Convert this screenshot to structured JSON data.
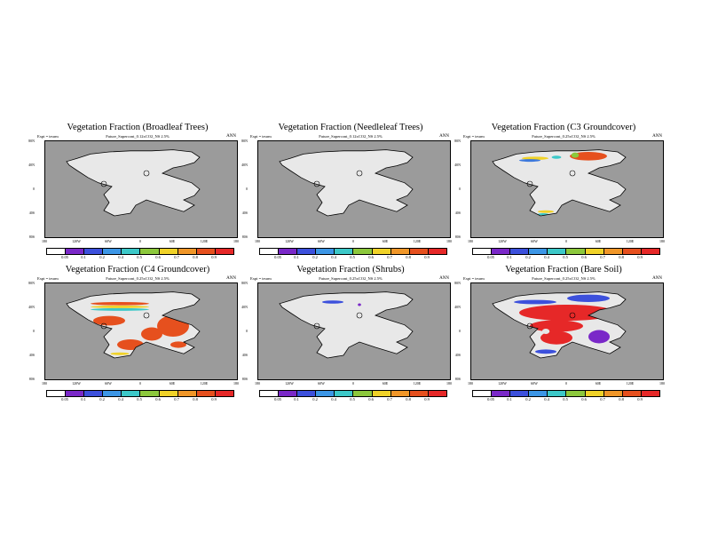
{
  "chart_data": [
    {
      "type": "map",
      "title": "Vegetation Fraction (Broadleaf Trees)",
      "expt_label": "Expt = teurm",
      "run_label": "Future_Supercont_0.12xCO2_NS 2.5%",
      "period": "ANN",
      "lat_ticks": [
        "80N",
        "40N",
        "0",
        "40S",
        "80S"
      ],
      "lon_ticks": [
        "180",
        "120W",
        "60W",
        "0",
        "60E",
        "120E",
        "180"
      ],
      "legend_labels": [
        "0.05",
        "0.1",
        "0.2",
        "0.4",
        "0.5",
        "0.6",
        "0.7",
        "0.8",
        "0.9"
      ],
      "patches": []
    },
    {
      "type": "map",
      "title": "Vegetation Fraction (Needleleaf Trees)",
      "expt_label": "Expt = teurm",
      "run_label": "Future_Supercont_0.12xCO2_NS 2.5%",
      "period": "ANN",
      "lat_ticks": [
        "80N",
        "40N",
        "0",
        "40S",
        "80S"
      ],
      "lon_ticks": [
        "180",
        "120W",
        "60W",
        "0",
        "60E",
        "120E",
        "180"
      ],
      "legend_labels": [
        "0.05",
        "0.1",
        "0.2",
        "0.4",
        "0.5",
        "0.6",
        "0.7",
        "0.8",
        "0.9"
      ],
      "patches": []
    },
    {
      "type": "map",
      "title": "Vegetation Fraction (C3 Groundcover)",
      "expt_label": "Expt = teurm",
      "run_label": "Future_Supercont_0.25xCO2_NS 2.5%",
      "period": "ANN",
      "lat_ticks": [
        "80N",
        "40N",
        "0",
        "40S",
        "80S"
      ],
      "lon_ticks": [
        "180",
        "120W",
        "60W",
        "0",
        "60E",
        "120E",
        "180"
      ],
      "legend_labels": [
        "0.05",
        "0.1",
        "0.2",
        "0.4",
        "0.5",
        "0.6",
        "0.7",
        "0.8",
        "0.9"
      ],
      "patches": [
        {
          "lon": 40,
          "lat": 62,
          "w": 70,
          "h": 16,
          "color": "#e6501e"
        },
        {
          "lon": 15,
          "lat": 64,
          "w": 14,
          "h": 10,
          "color": "#8cc83c"
        },
        {
          "lon": -60,
          "lat": 58,
          "w": 50,
          "h": 6,
          "color": "#f0d228"
        },
        {
          "lon": -70,
          "lat": 54,
          "w": 40,
          "h": 5,
          "color": "#3c78dc"
        },
        {
          "lon": -20,
          "lat": 60,
          "w": 18,
          "h": 6,
          "color": "#3cc8c8"
        },
        {
          "lon": -40,
          "lat": -42,
          "w": 30,
          "h": 5,
          "color": "#f0d228"
        },
        {
          "lon": -45,
          "lat": -47,
          "w": 20,
          "h": 4,
          "color": "#3cc8c8"
        }
      ]
    },
    {
      "type": "map",
      "title": "Vegetation Fraction (C4 Groundcover)",
      "expt_label": "Expt = teurm",
      "run_label": "Future_Supercont_0.25xCO2_NS 2.5%",
      "period": "ANN",
      "lat_ticks": [
        "80N",
        "40N",
        "0",
        "40S",
        "80S"
      ],
      "lon_ticks": [
        "180",
        "120W",
        "60W",
        "0",
        "60E",
        "120E",
        "180"
      ],
      "legend_labels": [
        "0.05",
        "0.1",
        "0.2",
        "0.4",
        "0.5",
        "0.6",
        "0.7",
        "0.8",
        "0.9"
      ],
      "patches": [
        {
          "lon": -40,
          "lat": 52,
          "w": 110,
          "h": 6,
          "color": "#e6501e"
        },
        {
          "lon": -40,
          "lat": 46,
          "w": 110,
          "h": 5,
          "color": "#f0d228"
        },
        {
          "lon": -40,
          "lat": 41,
          "w": 110,
          "h": 5,
          "color": "#3cc8c8"
        },
        {
          "lon": -60,
          "lat": 20,
          "w": 60,
          "h": 18,
          "color": "#e6501e"
        },
        {
          "lon": 60,
          "lat": 10,
          "w": 60,
          "h": 40,
          "color": "#e6501e"
        },
        {
          "lon": 20,
          "lat": -5,
          "w": 40,
          "h": 25,
          "color": "#e6501e"
        },
        {
          "lon": -20,
          "lat": -25,
          "w": 50,
          "h": 20,
          "color": "#e6501e"
        },
        {
          "lon": -40,
          "lat": -42,
          "w": 35,
          "h": 5,
          "color": "#f0d228"
        },
        {
          "lon": 70,
          "lat": -25,
          "w": 30,
          "h": 12,
          "color": "#e6501e"
        }
      ]
    },
    {
      "type": "map",
      "title": "Vegetation Fraction (Shrubs)",
      "expt_label": "Expt = teurm",
      "run_label": "Future_Supercont_0.25xCO2_NS 2.5%",
      "period": "ANN",
      "lat_ticks": [
        "80N",
        "40N",
        "0",
        "40S",
        "80S"
      ],
      "lon_ticks": [
        "180",
        "120W",
        "60W",
        "0",
        "60E",
        "120E",
        "180"
      ],
      "legend_labels": [
        "0.05",
        "0.1",
        "0.2",
        "0.4",
        "0.5",
        "0.6",
        "0.7",
        "0.8",
        "0.9"
      ],
      "patches": [
        {
          "lon": -40,
          "lat": 55,
          "w": 40,
          "h": 6,
          "color": "#3c50dc"
        },
        {
          "lon": 10,
          "lat": 50,
          "w": 6,
          "h": 5,
          "color": "#7a28c8"
        }
      ]
    },
    {
      "type": "map",
      "title": "Vegetation Fraction (Bare Soil)",
      "expt_label": "Expt = teurm",
      "run_label": "Future_Supercont_0.25xCO2_NS 2.5%",
      "period": "ANN",
      "lat_ticks": [
        "80N",
        "40N",
        "0",
        "40S",
        "80S"
      ],
      "lon_ticks": [
        "180",
        "120W",
        "60W",
        "0",
        "60E",
        "120E",
        "180"
      ],
      "legend_labels": [
        "0.05",
        "0.1",
        "0.2",
        "0.4",
        "0.5",
        "0.6",
        "0.7",
        "0.8",
        "0.9"
      ],
      "patches": [
        {
          "lon": 40,
          "lat": 62,
          "w": 80,
          "h": 14,
          "color": "#3c50dc"
        },
        {
          "lon": -60,
          "lat": 55,
          "w": 80,
          "h": 8,
          "color": "#3c50dc"
        },
        {
          "lon": 0,
          "lat": 35,
          "w": 180,
          "h": 30,
          "color": "#e62828"
        },
        {
          "lon": -20,
          "lat": 10,
          "w": 100,
          "h": 22,
          "color": "#e62828"
        },
        {
          "lon": -20,
          "lat": -12,
          "w": 60,
          "h": 25,
          "color": "#e62828"
        },
        {
          "lon": -40,
          "lat": -38,
          "w": 40,
          "h": 8,
          "color": "#3c50dc"
        },
        {
          "lon": 60,
          "lat": -10,
          "w": 40,
          "h": 25,
          "color": "#7a28c8"
        },
        {
          "lon": -40,
          "lat": 0,
          "w": 14,
          "h": 10,
          "color": "#e6e6e6"
        }
      ]
    }
  ],
  "colorbar": {
    "colors": [
      "#ffffff",
      "#7a28c8",
      "#3c50dc",
      "#3c96e6",
      "#3cc8c8",
      "#8cc83c",
      "#f0d228",
      "#f09628",
      "#e6501e",
      "#e62828"
    ]
  },
  "map_style": {
    "ocean": "#9b9b9b",
    "land": "#e8e8e8",
    "coast": "#000000"
  }
}
